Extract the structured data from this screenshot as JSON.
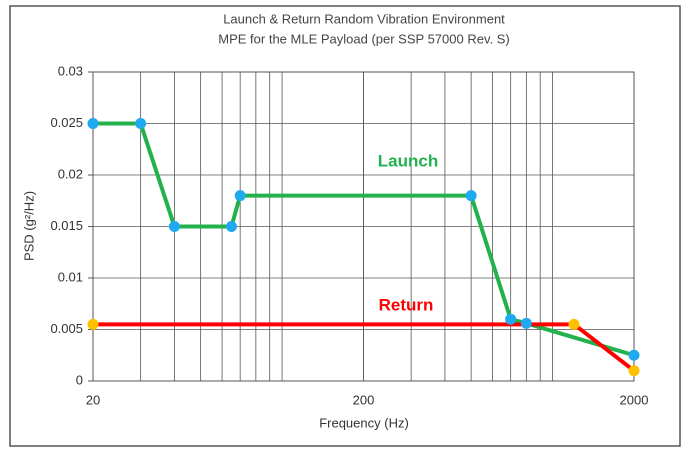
{
  "chart_data": {
    "type": "line",
    "title": [
      "Launch & Return Random Vibration Environment",
      "MPE for the MLE Payload (per SSP 57000 Rev. S)"
    ],
    "x_label": "Frequency (Hz)",
    "y_label": "PSD (g²/Hz)",
    "x_scale": "log",
    "xlim": [
      20,
      2000
    ],
    "xticks": [
      20,
      200,
      2000
    ],
    "ylim": [
      0,
      0.03
    ],
    "yticks": [
      0,
      0.005,
      0.01,
      0.015,
      0.02,
      0.025,
      0.03
    ],
    "grid": true,
    "series": [
      {
        "name": "Launch",
        "color": "#22b14c",
        "marker_color": "#1fa9ee",
        "x": [
          20,
          30,
          40,
          65,
          70,
          500,
          700,
          800,
          2000
        ],
        "values": [
          0.025,
          0.025,
          0.015,
          0.015,
          0.018,
          0.018,
          0.006,
          0.0056,
          0.0025
        ]
      },
      {
        "name": "Return",
        "color": "#ff0000",
        "marker_color": "#ffc000",
        "x": [
          20,
          1200,
          2000
        ],
        "values": [
          0.0055,
          0.0055,
          0.001
        ]
      }
    ]
  }
}
